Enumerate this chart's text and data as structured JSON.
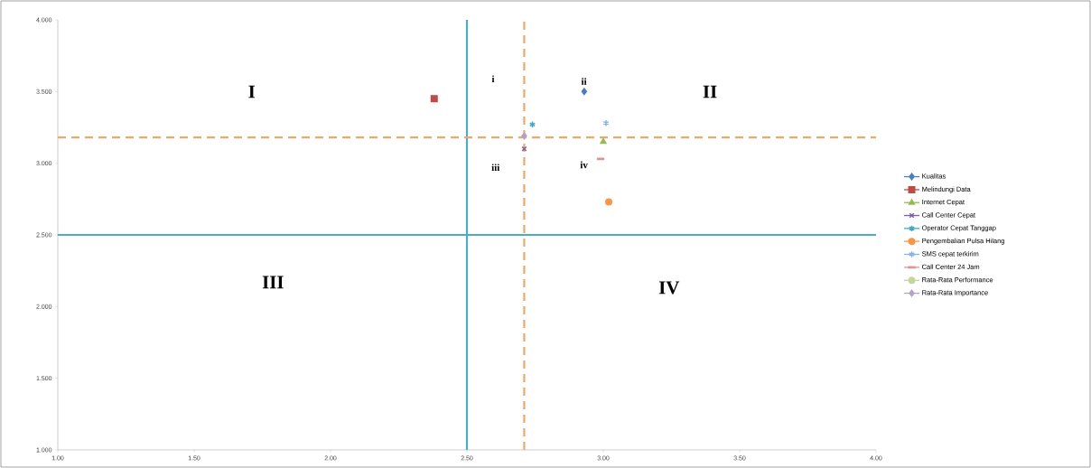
{
  "chart_data": {
    "type": "scatter",
    "xlim": [
      1.0,
      4.0
    ],
    "ylim": [
      1.0,
      4.0
    ],
    "xticks": [
      {
        "value": 1.0,
        "label": "1.00"
      },
      {
        "value": 1.5,
        "label": "1.50"
      },
      {
        "value": 2.0,
        "label": "2.00"
      },
      {
        "value": 2.5,
        "label": "2.50"
      },
      {
        "value": 3.0,
        "label": "3.00"
      },
      {
        "value": 3.5,
        "label": "3.50"
      },
      {
        "value": 4.0,
        "label": "4.00"
      }
    ],
    "yticks": [
      {
        "value": 1.0,
        "label": "1.000"
      },
      {
        "value": 1.5,
        "label": "1.500"
      },
      {
        "value": 2.0,
        "label": "2.000"
      },
      {
        "value": 2.5,
        "label": "2.500"
      },
      {
        "value": 3.0,
        "label": "3.000"
      },
      {
        "value": 3.5,
        "label": "3.500"
      },
      {
        "value": 4.0,
        "label": "4.000"
      }
    ],
    "grid": false,
    "legend": "right",
    "series": [
      {
        "name": "Kualitas",
        "color": "#4a7ebb",
        "marker": "diamond",
        "x": [
          2.93
        ],
        "values": [
          3.5
        ]
      },
      {
        "name": "Melindungi Data",
        "color": "#be4b48",
        "marker": "square",
        "x": [
          2.38
        ],
        "values": [
          3.45
        ]
      },
      {
        "name": "Internet Cepat",
        "color": "#98b954",
        "marker": "triangle",
        "x": [
          3.0
        ],
        "values": [
          3.15
        ]
      },
      {
        "name": "Call Center Cepat",
        "color": "#7d60a0",
        "marker": "x",
        "x": [
          2.71
        ],
        "values": [
          3.1
        ]
      },
      {
        "name": "Operator Cepat Tanggap",
        "color": "#46aac5",
        "marker": "cross",
        "x": [
          2.74
        ],
        "values": [
          3.27
        ]
      },
      {
        "name": "Pengembalian Pulsa Hilang",
        "color": "#f79646",
        "marker": "circle",
        "x": [
          3.02
        ],
        "values": [
          2.73
        ]
      },
      {
        "name": "SMS cepat terkirim",
        "color": "#8cb4e2",
        "marker": "cross",
        "x": [
          3.01
        ],
        "values": [
          3.28
        ]
      },
      {
        "name": "Call Center 24 Jam",
        "color": "#d99694",
        "x": [
          2.99
        ],
        "values": [
          3.03
        ]
      },
      {
        "name": "Rata-Rata Performance",
        "color": "#c3d69b",
        "marker": "none"
      },
      {
        "name": "Rata-Rata Importance",
        "color": "#b3a2c7",
        "marker": "diamond",
        "x": [
          2.71
        ],
        "values": [
          3.19
        ]
      }
    ],
    "ref_lines": [
      {
        "axis": "x",
        "value": 2.5,
        "color": "#4bacc6",
        "line_style": "solid"
      },
      {
        "axis": "y",
        "value": 2.5,
        "color": "#4bacc6",
        "line_style": "solid"
      },
      {
        "axis": "x",
        "value": 2.71,
        "color": "#f0a868",
        "line_style": "dashed"
      },
      {
        "axis": "y",
        "value": 3.18,
        "color": "#f0a868",
        "line_style": "dashed"
      }
    ],
    "annotations": [
      "I",
      "II",
      "III",
      "IV",
      "i",
      "ii",
      "iii",
      "iv"
    ]
  }
}
